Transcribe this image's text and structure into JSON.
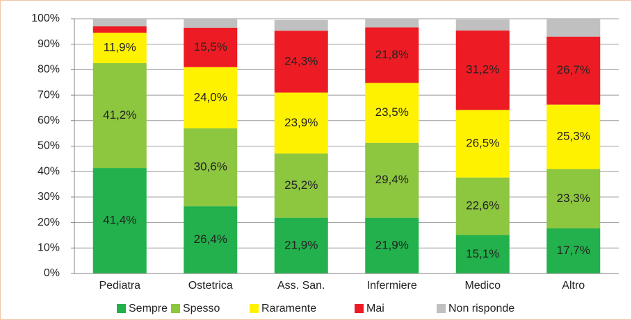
{
  "chart_data": {
    "type": "bar",
    "stacked": true,
    "categories": [
      "Pediatra",
      "Ostetrica",
      "Ass. San.",
      "Infermiere",
      "Medico",
      "Altro"
    ],
    "series": [
      {
        "name": "Sempre",
        "color": "#22b14c",
        "values": [
          41.4,
          26.4,
          21.9,
          21.9,
          15.1,
          17.7
        ],
        "value_labels": [
          "41,4%",
          "26,4%",
          "21,9%",
          "21,9%",
          "15,1%",
          "17,7%"
        ]
      },
      {
        "name": "Spesso",
        "color": "#8dc63f",
        "values": [
          41.2,
          30.6,
          25.2,
          29.4,
          22.6,
          23.3
        ],
        "value_labels": [
          "41,2%",
          "30,6%",
          "25,2%",
          "29,4%",
          "22,6%",
          "23,3%"
        ]
      },
      {
        "name": "Raramente",
        "color": "#fff200",
        "values": [
          11.9,
          24.0,
          23.9,
          23.5,
          26.5,
          25.3
        ],
        "value_labels": [
          "11,9%",
          "24,0%",
          "23,9%",
          "23,5%",
          "26,5%",
          "25,3%"
        ]
      },
      {
        "name": "Mai",
        "color": "#ed1c24",
        "values": [
          2.5,
          15.5,
          24.3,
          21.8,
          31.2,
          26.7
        ],
        "value_labels": [
          null,
          "15,5%",
          "24,3%",
          "21,8%",
          "31,2%",
          "26,7%"
        ]
      },
      {
        "name": "Non risponde",
        "color": "#c0c0c0",
        "values": [
          3.0,
          3.5,
          4.2,
          3.4,
          4.3,
          7.0
        ]
      }
    ],
    "ylim": [
      0,
      100
    ],
    "yticks": [
      {
        "value": 0,
        "label": "0%"
      },
      {
        "value": 10,
        "label": "10%"
      },
      {
        "value": 20,
        "label": "20%"
      },
      {
        "value": 30,
        "label": "30%"
      },
      {
        "value": 40,
        "label": "40%"
      },
      {
        "value": 50,
        "label": "50%"
      },
      {
        "value": 60,
        "label": "60%"
      },
      {
        "value": 70,
        "label": "70%"
      },
      {
        "value": 80,
        "label": "80%"
      },
      {
        "value": 90,
        "label": "90%"
      },
      {
        "value": 100,
        "label": "100%"
      }
    ],
    "grid": true,
    "legend": "bottom"
  }
}
